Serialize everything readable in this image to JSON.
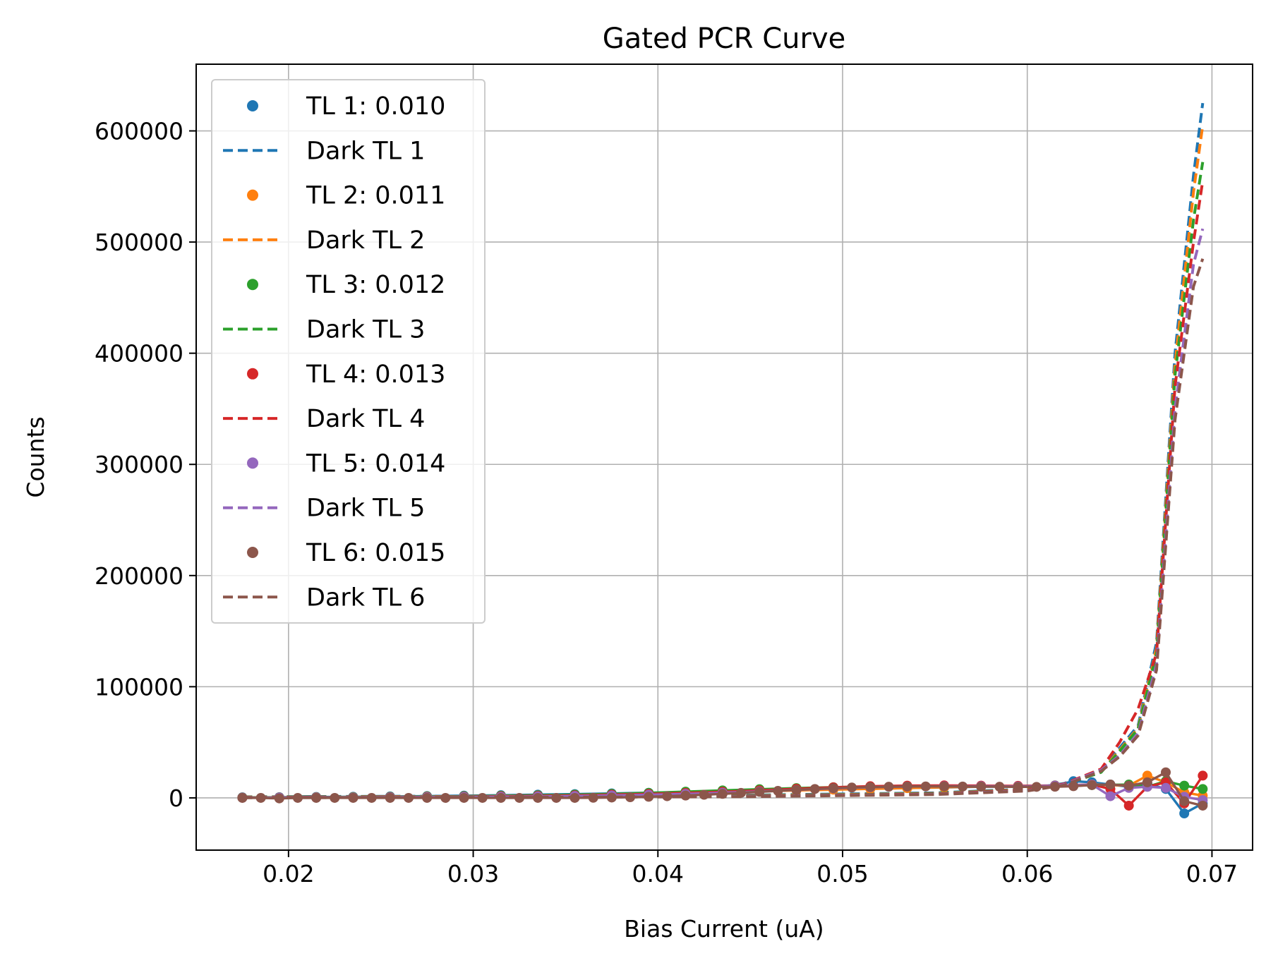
{
  "chart_data": {
    "type": "line",
    "title": "Gated PCR Curve",
    "xlabel": "Bias Current (uA)",
    "ylabel": "Counts",
    "xlim": [
      0.015,
      0.0722
    ],
    "ylim": [
      -47000,
      660000
    ],
    "x_ticks": [
      {
        "value": 0.02,
        "label": "0.02"
      },
      {
        "value": 0.03,
        "label": "0.03"
      },
      {
        "value": 0.04,
        "label": "0.04"
      },
      {
        "value": 0.05,
        "label": "0.05"
      },
      {
        "value": 0.06,
        "label": "0.06"
      },
      {
        "value": 0.07,
        "label": "0.07"
      }
    ],
    "y_ticks": [
      {
        "value": 0,
        "label": "0"
      },
      {
        "value": 100000,
        "label": "100000"
      },
      {
        "value": 200000,
        "label": "200000"
      },
      {
        "value": 300000,
        "label": "300000"
      },
      {
        "value": 400000,
        "label": "400000"
      },
      {
        "value": 500000,
        "label": "500000"
      },
      {
        "value": 600000,
        "label": "600000"
      }
    ],
    "grid": true,
    "legend_position": "upper-left",
    "series": [
      {
        "name": "TL 1: 0.010",
        "kind": "scatter-line",
        "color": "#1f77b4",
        "x": [
          0.0175,
          0.0195,
          0.0215,
          0.0235,
          0.0255,
          0.0275,
          0.0295,
          0.0315,
          0.0335,
          0.0355,
          0.0375,
          0.0395,
          0.0415,
          0.0435,
          0.0455,
          0.0475,
          0.0495,
          0.0515,
          0.0535,
          0.0555,
          0.0575,
          0.0595,
          0.0615,
          0.0625,
          0.0635,
          0.0645,
          0.0655,
          0.0665,
          0.0675,
          0.0685,
          0.0695
        ],
        "y": [
          500,
          600,
          800,
          1000,
          1300,
          1600,
          2000,
          2400,
          2900,
          3400,
          4000,
          4600,
          5200,
          5800,
          6400,
          7000,
          7600,
          8200,
          8800,
          9400,
          10000,
          10600,
          11200,
          15000,
          14000,
          12000,
          10000,
          13000,
          8000,
          -14000,
          -5000
        ]
      },
      {
        "name": "Dark TL 1",
        "kind": "dashed",
        "color": "#1f77b4",
        "x": [
          0.0175,
          0.025,
          0.035,
          0.045,
          0.055,
          0.06,
          0.062,
          0.064,
          0.065,
          0.066,
          0.067,
          0.068,
          0.069,
          0.0695
        ],
        "y": [
          1000,
          1400,
          1800,
          2500,
          4500,
          8000,
          13000,
          25000,
          45000,
          65000,
          140000,
          400000,
          560000,
          625000
        ]
      },
      {
        "name": "TL 2: 0.011",
        "kind": "scatter-line",
        "color": "#ff7f0e",
        "x": [
          0.0175,
          0.0195,
          0.0215,
          0.0235,
          0.0255,
          0.0275,
          0.0295,
          0.0315,
          0.0335,
          0.0355,
          0.0375,
          0.0395,
          0.0415,
          0.0435,
          0.0455,
          0.0475,
          0.0495,
          0.0515,
          0.0535,
          0.0555,
          0.0575,
          0.0595,
          0.0615,
          0.0635,
          0.0655,
          0.0665,
          0.0675,
          0.0685,
          0.0695
        ],
        "y": [
          300,
          400,
          500,
          700,
          900,
          1200,
          1500,
          1900,
          2300,
          2800,
          3300,
          3900,
          4600,
          5300,
          6000,
          6700,
          7400,
          8100,
          8800,
          9500,
          10200,
          10500,
          11000,
          12000,
          11000,
          20000,
          14000,
          5000,
          2000
        ]
      },
      {
        "name": "Dark TL 2",
        "kind": "dashed",
        "color": "#ff7f0e",
        "x": [
          0.0175,
          0.025,
          0.035,
          0.045,
          0.055,
          0.06,
          0.062,
          0.064,
          0.065,
          0.066,
          0.067,
          0.068,
          0.069,
          0.0695
        ],
        "y": [
          800,
          1100,
          1500,
          2100,
          4000,
          7500,
          12500,
          24000,
          43000,
          63000,
          135000,
          390000,
          545000,
          605000
        ]
      },
      {
        "name": "TL 3: 0.012",
        "kind": "scatter-line",
        "color": "#2ca02c",
        "x": [
          0.0175,
          0.0195,
          0.0215,
          0.0235,
          0.0255,
          0.0275,
          0.0295,
          0.0315,
          0.0335,
          0.0355,
          0.0375,
          0.0395,
          0.0415,
          0.0435,
          0.0455,
          0.0475,
          0.0495,
          0.0515,
          0.0535,
          0.0555,
          0.0575,
          0.0595,
          0.0615,
          0.0635,
          0.0655,
          0.0665,
          0.0675,
          0.0685,
          0.0695
        ],
        "y": [
          200,
          300,
          400,
          600,
          800,
          1100,
          1400,
          1800,
          2300,
          2900,
          3600,
          4500,
          5600,
          6700,
          7800,
          8800,
          9600,
          10200,
          10600,
          10800,
          10800,
          10500,
          10800,
          11500,
          12000,
          10000,
          15000,
          11000,
          8000
        ]
      },
      {
        "name": "Dark TL 3",
        "kind": "dashed",
        "color": "#2ca02c",
        "x": [
          0.0175,
          0.025,
          0.035,
          0.045,
          0.055,
          0.06,
          0.062,
          0.064,
          0.065,
          0.066,
          0.067,
          0.068,
          0.069,
          0.0695
        ],
        "y": [
          700,
          1000,
          1300,
          1900,
          3800,
          7200,
          12000,
          23000,
          42000,
          62000,
          130000,
          380000,
          520000,
          572000
        ]
      },
      {
        "name": "TL 4: 0.013",
        "kind": "scatter-line",
        "color": "#d62728",
        "x": [
          0.0175,
          0.0195,
          0.0215,
          0.0235,
          0.0255,
          0.0275,
          0.0295,
          0.0315,
          0.0335,
          0.0355,
          0.0375,
          0.0395,
          0.0415,
          0.0435,
          0.0455,
          0.0475,
          0.0495,
          0.0515,
          0.0535,
          0.0555,
          0.0575,
          0.0595,
          0.0615,
          0.0635,
          0.0645,
          0.0655,
          0.0665,
          0.0675,
          0.0685,
          0.0695
        ],
        "y": [
          100,
          200,
          300,
          400,
          600,
          800,
          1100,
          1400,
          1800,
          2300,
          2900,
          3600,
          4500,
          5500,
          6800,
          8200,
          9500,
          10500,
          11000,
          11200,
          11000,
          10800,
          11000,
          12000,
          8000,
          -7000,
          10000,
          14000,
          -5000,
          20000
        ]
      },
      {
        "name": "Dark TL 4",
        "kind": "dashed",
        "color": "#d62728",
        "x": [
          0.0175,
          0.025,
          0.035,
          0.045,
          0.055,
          0.06,
          0.062,
          0.064,
          0.065,
          0.066,
          0.067,
          0.068,
          0.069,
          0.0695
        ],
        "y": [
          500,
          800,
          1100,
          1600,
          3500,
          7000,
          12500,
          26000,
          50000,
          80000,
          130000,
          370000,
          500000,
          555000
        ]
      },
      {
        "name": "TL 5: 0.014",
        "kind": "scatter-line",
        "color": "#9467bd",
        "x": [
          0.0175,
          0.0195,
          0.0215,
          0.0235,
          0.0255,
          0.0275,
          0.0295,
          0.0315,
          0.0335,
          0.0355,
          0.0375,
          0.0395,
          0.0415,
          0.0435,
          0.0455,
          0.0475,
          0.0495,
          0.0515,
          0.0535,
          0.0555,
          0.0575,
          0.0595,
          0.0615,
          0.0635,
          0.0645,
          0.0655,
          0.0665,
          0.0675,
          0.0685,
          0.0695
        ],
        "y": [
          100,
          150,
          200,
          300,
          450,
          600,
          800,
          1000,
          1300,
          1700,
          2200,
          2800,
          3600,
          4600,
          5800,
          7200,
          8500,
          9500,
          10200,
          10500,
          10500,
          10300,
          10800,
          12000,
          1500,
          9000,
          10000,
          9000,
          1000,
          -2000
        ]
      },
      {
        "name": "Dark TL 5",
        "kind": "dashed",
        "color": "#9467bd",
        "x": [
          0.0175,
          0.025,
          0.035,
          0.045,
          0.055,
          0.06,
          0.062,
          0.064,
          0.065,
          0.066,
          0.067,
          0.068,
          0.069,
          0.0695
        ],
        "y": [
          300,
          600,
          900,
          1400,
          3200,
          6500,
          12000,
          25000,
          38000,
          58000,
          120000,
          350000,
          480000,
          512000
        ]
      },
      {
        "name": "TL 6: 0.015",
        "kind": "scatter-line",
        "color": "#8c564b",
        "x": [
          0.0175,
          0.0185,
          0.0195,
          0.0205,
          0.0215,
          0.0225,
          0.0235,
          0.0245,
          0.0255,
          0.0265,
          0.0275,
          0.0285,
          0.0295,
          0.0305,
          0.0315,
          0.0325,
          0.0335,
          0.0345,
          0.0355,
          0.0365,
          0.0375,
          0.0385,
          0.0395,
          0.0405,
          0.0415,
          0.0425,
          0.0435,
          0.0445,
          0.0455,
          0.0465,
          0.0475,
          0.0485,
          0.0495,
          0.0505,
          0.0515,
          0.0525,
          0.0535,
          0.0545,
          0.0555,
          0.0565,
          0.0575,
          0.0585,
          0.0595,
          0.0605,
          0.0615,
          0.0625,
          0.0635,
          0.0645,
          0.0655,
          0.0665,
          0.0675,
          0.0685,
          0.0695
        ],
        "y": [
          0,
          0,
          -500,
          0,
          0,
          0,
          0,
          0,
          0,
          0,
          0,
          0,
          0,
          0,
          0,
          0,
          0,
          0,
          0,
          100,
          300,
          600,
          1000,
          1500,
          2100,
          2800,
          3600,
          4500,
          5400,
          6300,
          7200,
          8000,
          8700,
          9300,
          9700,
          10000,
          10200,
          10300,
          10300,
          10200,
          10100,
          10000,
          9900,
          9900,
          10000,
          10500,
          11500,
          12000,
          11000,
          14000,
          23000,
          -3000,
          -7000
        ]
      },
      {
        "name": "Dark TL 6",
        "kind": "dashed",
        "color": "#8c564b",
        "x": [
          0.0175,
          0.025,
          0.035,
          0.045,
          0.055,
          0.06,
          0.062,
          0.064,
          0.065,
          0.066,
          0.067,
          0.068,
          0.069,
          0.0695
        ],
        "y": [
          100,
          300,
          600,
          1100,
          3000,
          6200,
          11500,
          24000,
          37000,
          56000,
          115000,
          340000,
          460000,
          485000
        ]
      }
    ]
  }
}
